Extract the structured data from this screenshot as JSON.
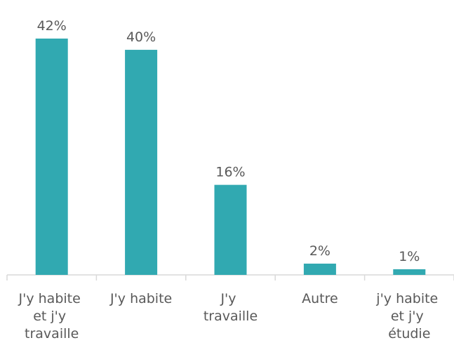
{
  "chart_data": {
    "type": "bar",
    "categories": [
      "J'y habite et j'y travaille",
      "J'y habite",
      "J'y travaille",
      "Autre",
      "j'y habite et j'y étudie"
    ],
    "values": [
      42,
      40,
      16,
      2,
      1
    ],
    "value_labels": [
      "42%",
      "40%",
      "16%",
      "2%",
      "1%"
    ],
    "color": "#31a9b1"
  }
}
